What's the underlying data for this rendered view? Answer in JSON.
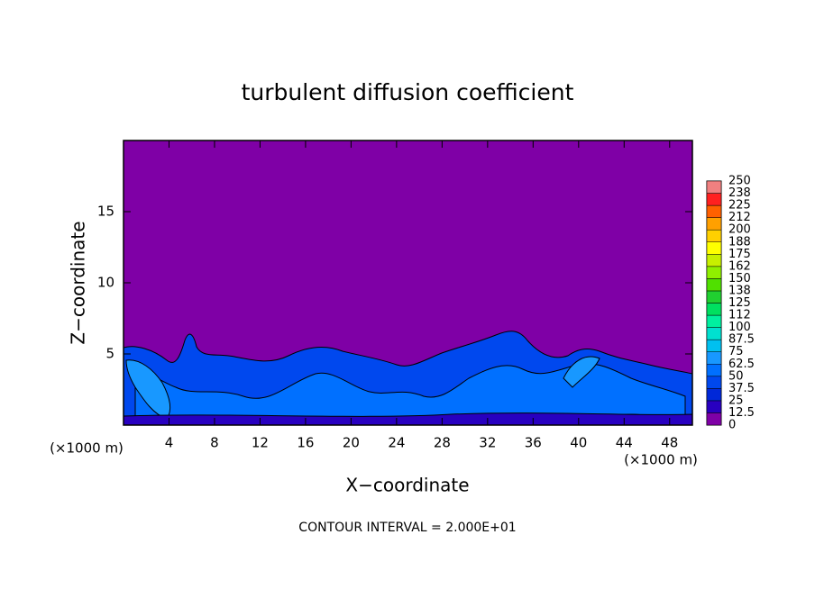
{
  "chart_data": {
    "type": "contour",
    "title": "turbulent diffusion coefficient",
    "xlabel": "X−coordinate",
    "ylabel": "Z−coordinate",
    "x_unit_label": "(×1000 m)",
    "y_unit_label": "(×1000 m)",
    "annotation": "CONTOUR INTERVAL = 2.000E+01",
    "xlim": [
      0,
      50
    ],
    "xticks": [
      4,
      8,
      12,
      16,
      20,
      24,
      28,
      32,
      36,
      40,
      44,
      48
    ],
    "ylim": [
      0,
      20
    ],
    "yticks": [
      5,
      10,
      15
    ],
    "colorbar": {
      "levels": [
        0,
        12.5,
        25,
        37.5,
        50,
        62.5,
        75,
        87.5,
        100,
        {
          "value": 112.5,
          "label": "112"
        },
        125,
        {
          "value": 137.5,
          "label": "138"
        },
        150,
        {
          "value": 162.5,
          "label": "162"
        },
        175,
        {
          "value": 187.5,
          "label": "188"
        },
        200,
        {
          "value": 212.5,
          "label": "212"
        },
        225,
        {
          "value": 237.5,
          "label": "238"
        },
        250
      ],
      "colors": [
        "#7f00a6",
        "#2800c0",
        "#0028d8",
        "#0048ee",
        "#0070ff",
        "#1898ff",
        "#00c0f0",
        "#00e0d0",
        "#00f0a0",
        "#00e060",
        "#20d030",
        "#50e000",
        "#90f000",
        "#c8f000",
        "#ffff00",
        "#ffd000",
        "#ffa000",
        "#ff6000",
        "#ff2020",
        "#f08080"
      ]
    }
  }
}
